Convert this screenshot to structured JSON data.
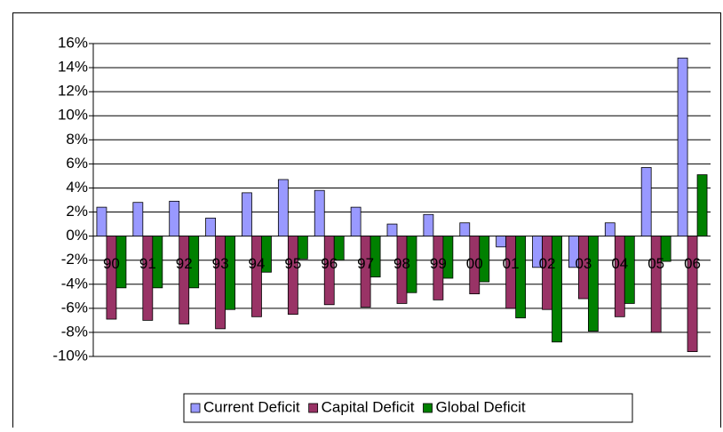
{
  "chart_data": {
    "type": "bar",
    "categories": [
      "90",
      "91",
      "92",
      "93",
      "94",
      "95",
      "96",
      "97",
      "98",
      "99",
      "00",
      "01",
      "02",
      "03",
      "04",
      "05",
      "06"
    ],
    "series": [
      {
        "name": "Current Deficit",
        "color": "#9999ff",
        "values": [
          2.4,
          2.8,
          2.9,
          1.5,
          3.6,
          4.7,
          3.8,
          2.4,
          1.0,
          1.8,
          1.1,
          -0.9,
          -2.6,
          -2.6,
          1.1,
          5.7,
          14.8
        ]
      },
      {
        "name": "Capital Deficit",
        "color": "#993366",
        "values": [
          -6.9,
          -7.0,
          -7.3,
          -7.7,
          -6.7,
          -6.5,
          -5.7,
          -5.9,
          -5.6,
          -5.3,
          -4.8,
          -6.0,
          -6.1,
          -5.2,
          -6.7,
          -8.0,
          -9.6
        ]
      },
      {
        "name": "Global Deficit",
        "color": "#008000",
        "values": [
          -4.3,
          -4.3,
          -4.3,
          -6.1,
          -3.0,
          -1.9,
          -2.0,
          -3.4,
          -4.7,
          -3.5,
          -3.8,
          -6.8,
          -8.8,
          -7.9,
          -5.6,
          -2.1,
          5.1
        ]
      }
    ],
    "ylim": [
      -10,
      16
    ],
    "yticks": [
      {
        "value": -10,
        "label": "-10%"
      },
      {
        "value": -8,
        "label": "-8%"
      },
      {
        "value": -6,
        "label": "-6%"
      },
      {
        "value": -4,
        "label": "-4%"
      },
      {
        "value": -2,
        "label": "-2%"
      },
      {
        "value": 0,
        "label": "0%"
      },
      {
        "value": 2,
        "label": "2%"
      },
      {
        "value": 4,
        "label": "4%"
      },
      {
        "value": 6,
        "label": "6%"
      },
      {
        "value": 8,
        "label": "8%"
      },
      {
        "value": 10,
        "label": "10%"
      },
      {
        "value": 12,
        "label": "12%"
      },
      {
        "value": 14,
        "label": "14%"
      },
      {
        "value": 16,
        "label": "16%"
      }
    ],
    "grid": true,
    "legend": "bottom"
  }
}
